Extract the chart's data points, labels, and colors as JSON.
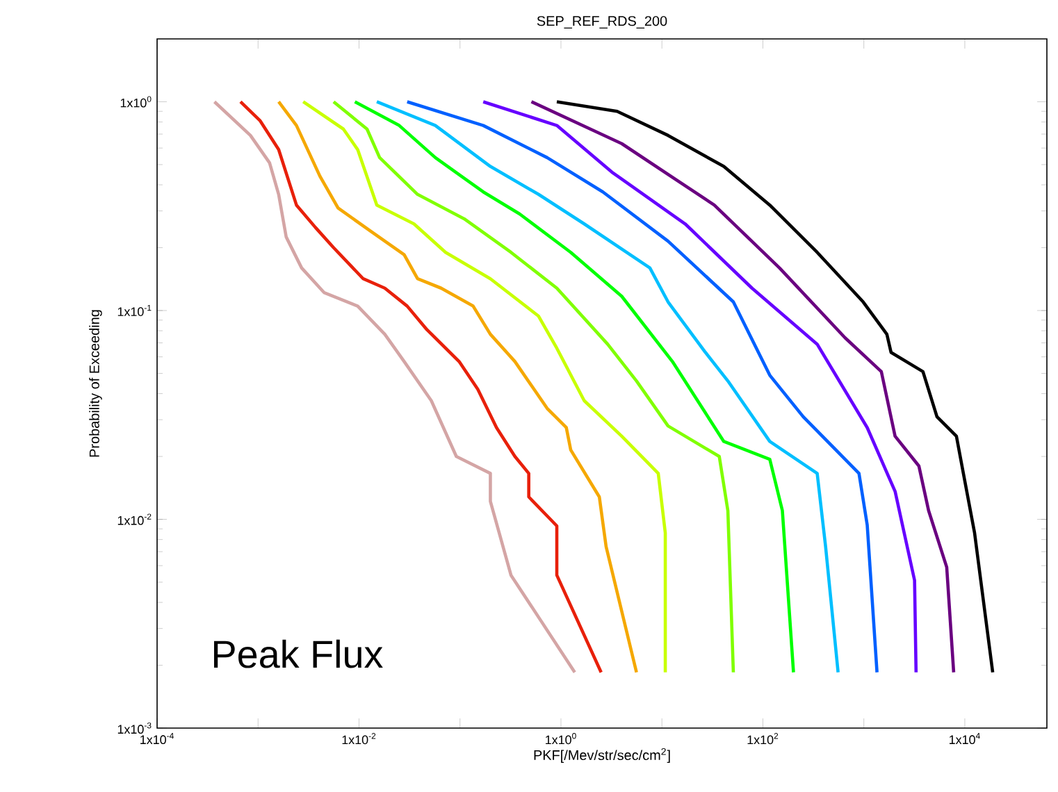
{
  "chart_data": {
    "type": "line",
    "title": "SEP_REF_RDS_200",
    "xlabel": "PKF[/Mev/str/sec/cm$^{2}$]",
    "ylabel": "Probability of Exceeding",
    "annotations": [
      "Peak Flux"
    ],
    "log": "xy",
    "xlim": [
      0.0001,
      65000
    ],
    "ylim": [
      0.001,
      2
    ],
    "xticks": [
      {
        "value": 0.0001,
        "label": "1x10$^{-4}$"
      },
      {
        "value": 0.001,
        "label": null
      },
      {
        "value": 0.01,
        "label": "1x10$^{-2}$"
      },
      {
        "value": 0.1,
        "label": null
      },
      {
        "value": 1,
        "label": "1x10$^{0}$"
      },
      {
        "value": 10,
        "label": null
      },
      {
        "value": 100,
        "label": "1x10$^{2}$"
      },
      {
        "value": 1000,
        "label": null
      },
      {
        "value": 10000,
        "label": "1x10$^{4}$"
      }
    ],
    "yticks": [
      {
        "value": 0.001,
        "label": "1x10$^{-3}$"
      },
      {
        "value": 0.01,
        "label": "1x10$^{-2}$"
      },
      {
        "value": 0.1,
        "label": "1x10$^{-1}$"
      },
      {
        "value": 1,
        "label": "1x10$^{0}$"
      }
    ],
    "series": [
      {
        "color": "#d4a5a5",
        "x": [
          0.00037,
          0.00084,
          0.0013,
          0.0016,
          0.0019,
          0.0027,
          0.0045,
          0.0097,
          0.018,
          0.028,
          0.052,
          0.092,
          0.2,
          0.2,
          0.32,
          1.37
        ],
        "values": [
          1,
          0.69,
          0.51,
          0.36,
          0.225,
          0.16,
          0.122,
          0.105,
          0.077,
          0.057,
          0.037,
          0.02,
          0.0166,
          0.0122,
          0.0054,
          0.00185
        ]
      },
      {
        "color": "#e8200a",
        "x": [
          0.00067,
          0.00105,
          0.0016,
          0.0024,
          0.0037,
          0.0056,
          0.011,
          0.018,
          0.03,
          0.047,
          0.098,
          0.15,
          0.23,
          0.35,
          0.48,
          0.48,
          0.91,
          0.91,
          2.5
        ],
        "values": [
          1,
          0.81,
          0.59,
          0.32,
          0.25,
          0.2,
          0.142,
          0.128,
          0.105,
          0.081,
          0.057,
          0.042,
          0.0275,
          0.02,
          0.0166,
          0.0128,
          0.0093,
          0.0054,
          0.00185
        ]
      },
      {
        "color": "#f5a800",
        "x": [
          0.0016,
          0.0024,
          0.0041,
          0.0062,
          0.013,
          0.028,
          0.038,
          0.065,
          0.135,
          0.2,
          0.35,
          0.73,
          1.13,
          1.25,
          2.4,
          2.8,
          5.6
        ],
        "values": [
          1,
          0.77,
          0.44,
          0.31,
          0.24,
          0.185,
          0.142,
          0.128,
          0.105,
          0.077,
          0.057,
          0.034,
          0.0275,
          0.0215,
          0.0128,
          0.0074,
          0.00185
        ]
      },
      {
        "color": "#c8ff00",
        "x": [
          0.0028,
          0.007,
          0.0097,
          0.015,
          0.035,
          0.072,
          0.2,
          0.6,
          0.91,
          1.7,
          4.0,
          9.2,
          10.8,
          10.8
        ],
        "values": [
          1,
          0.74,
          0.59,
          0.32,
          0.26,
          0.19,
          0.142,
          0.094,
          0.066,
          0.037,
          0.025,
          0.0166,
          0.0086,
          0.00185
        ]
      },
      {
        "color": "#80ff00",
        "x": [
          0.0056,
          0.012,
          0.016,
          0.038,
          0.11,
          0.32,
          0.91,
          2.9,
          5.6,
          11.5,
          37,
          45,
          51
        ],
        "values": [
          1,
          0.74,
          0.54,
          0.36,
          0.275,
          0.19,
          0.128,
          0.069,
          0.046,
          0.028,
          0.02,
          0.011,
          0.00185
        ]
      },
      {
        "color": "#00ff00",
        "x": [
          0.0091,
          0.025,
          0.057,
          0.17,
          0.39,
          1.25,
          4.0,
          12.7,
          41,
          117,
          156,
          201
        ],
        "values": [
          1,
          0.77,
          0.54,
          0.37,
          0.29,
          0.19,
          0.117,
          0.057,
          0.0236,
          0.0194,
          0.011,
          0.00185
        ]
      },
      {
        "color": "#00bfff",
        "x": [
          0.015,
          0.057,
          0.2,
          0.6,
          1.7,
          7.6,
          11.5,
          27,
          45,
          117,
          345,
          418,
          556
        ],
        "values": [
          1,
          0.77,
          0.49,
          0.36,
          0.26,
          0.16,
          0.11,
          0.063,
          0.046,
          0.0236,
          0.0166,
          0.0074,
          0.00185
        ]
      },
      {
        "color": "#0060ff",
        "x": [
          0.03,
          0.17,
          0.73,
          2.6,
          11.5,
          51,
          117,
          251,
          895,
          1080,
          1350
        ],
        "values": [
          1,
          0.77,
          0.54,
          0.37,
          0.215,
          0.11,
          0.049,
          0.031,
          0.0166,
          0.0094,
          0.00185
        ]
      },
      {
        "color": "#6600ff",
        "x": [
          0.17,
          0.91,
          3.2,
          17,
          78,
          345,
          1080,
          2040,
          3180,
          3290
        ],
        "values": [
          1,
          0.77,
          0.46,
          0.26,
          0.128,
          0.069,
          0.0275,
          0.0136,
          0.0051,
          0.00185
        ]
      },
      {
        "color": "#6a0080",
        "x": [
          0.51,
          4.0,
          33,
          146,
          652,
          1490,
          2040,
          3510,
          4380,
          6620,
          7760
        ],
        "values": [
          1,
          0.63,
          0.32,
          0.16,
          0.074,
          0.051,
          0.025,
          0.018,
          0.011,
          0.0059,
          0.00185
        ]
      },
      {
        "color": "#000000",
        "x": [
          0.91,
          3.6,
          11.5,
          41,
          117,
          345,
          984,
          1690,
          1860,
          3850,
          5300,
          8260,
          9680,
          12500,
          18900
        ],
        "values": [
          1,
          0.9,
          0.69,
          0.49,
          0.32,
          0.19,
          0.11,
          0.077,
          0.063,
          0.051,
          0.031,
          0.025,
          0.0166,
          0.0086,
          0.00185
        ]
      }
    ]
  }
}
